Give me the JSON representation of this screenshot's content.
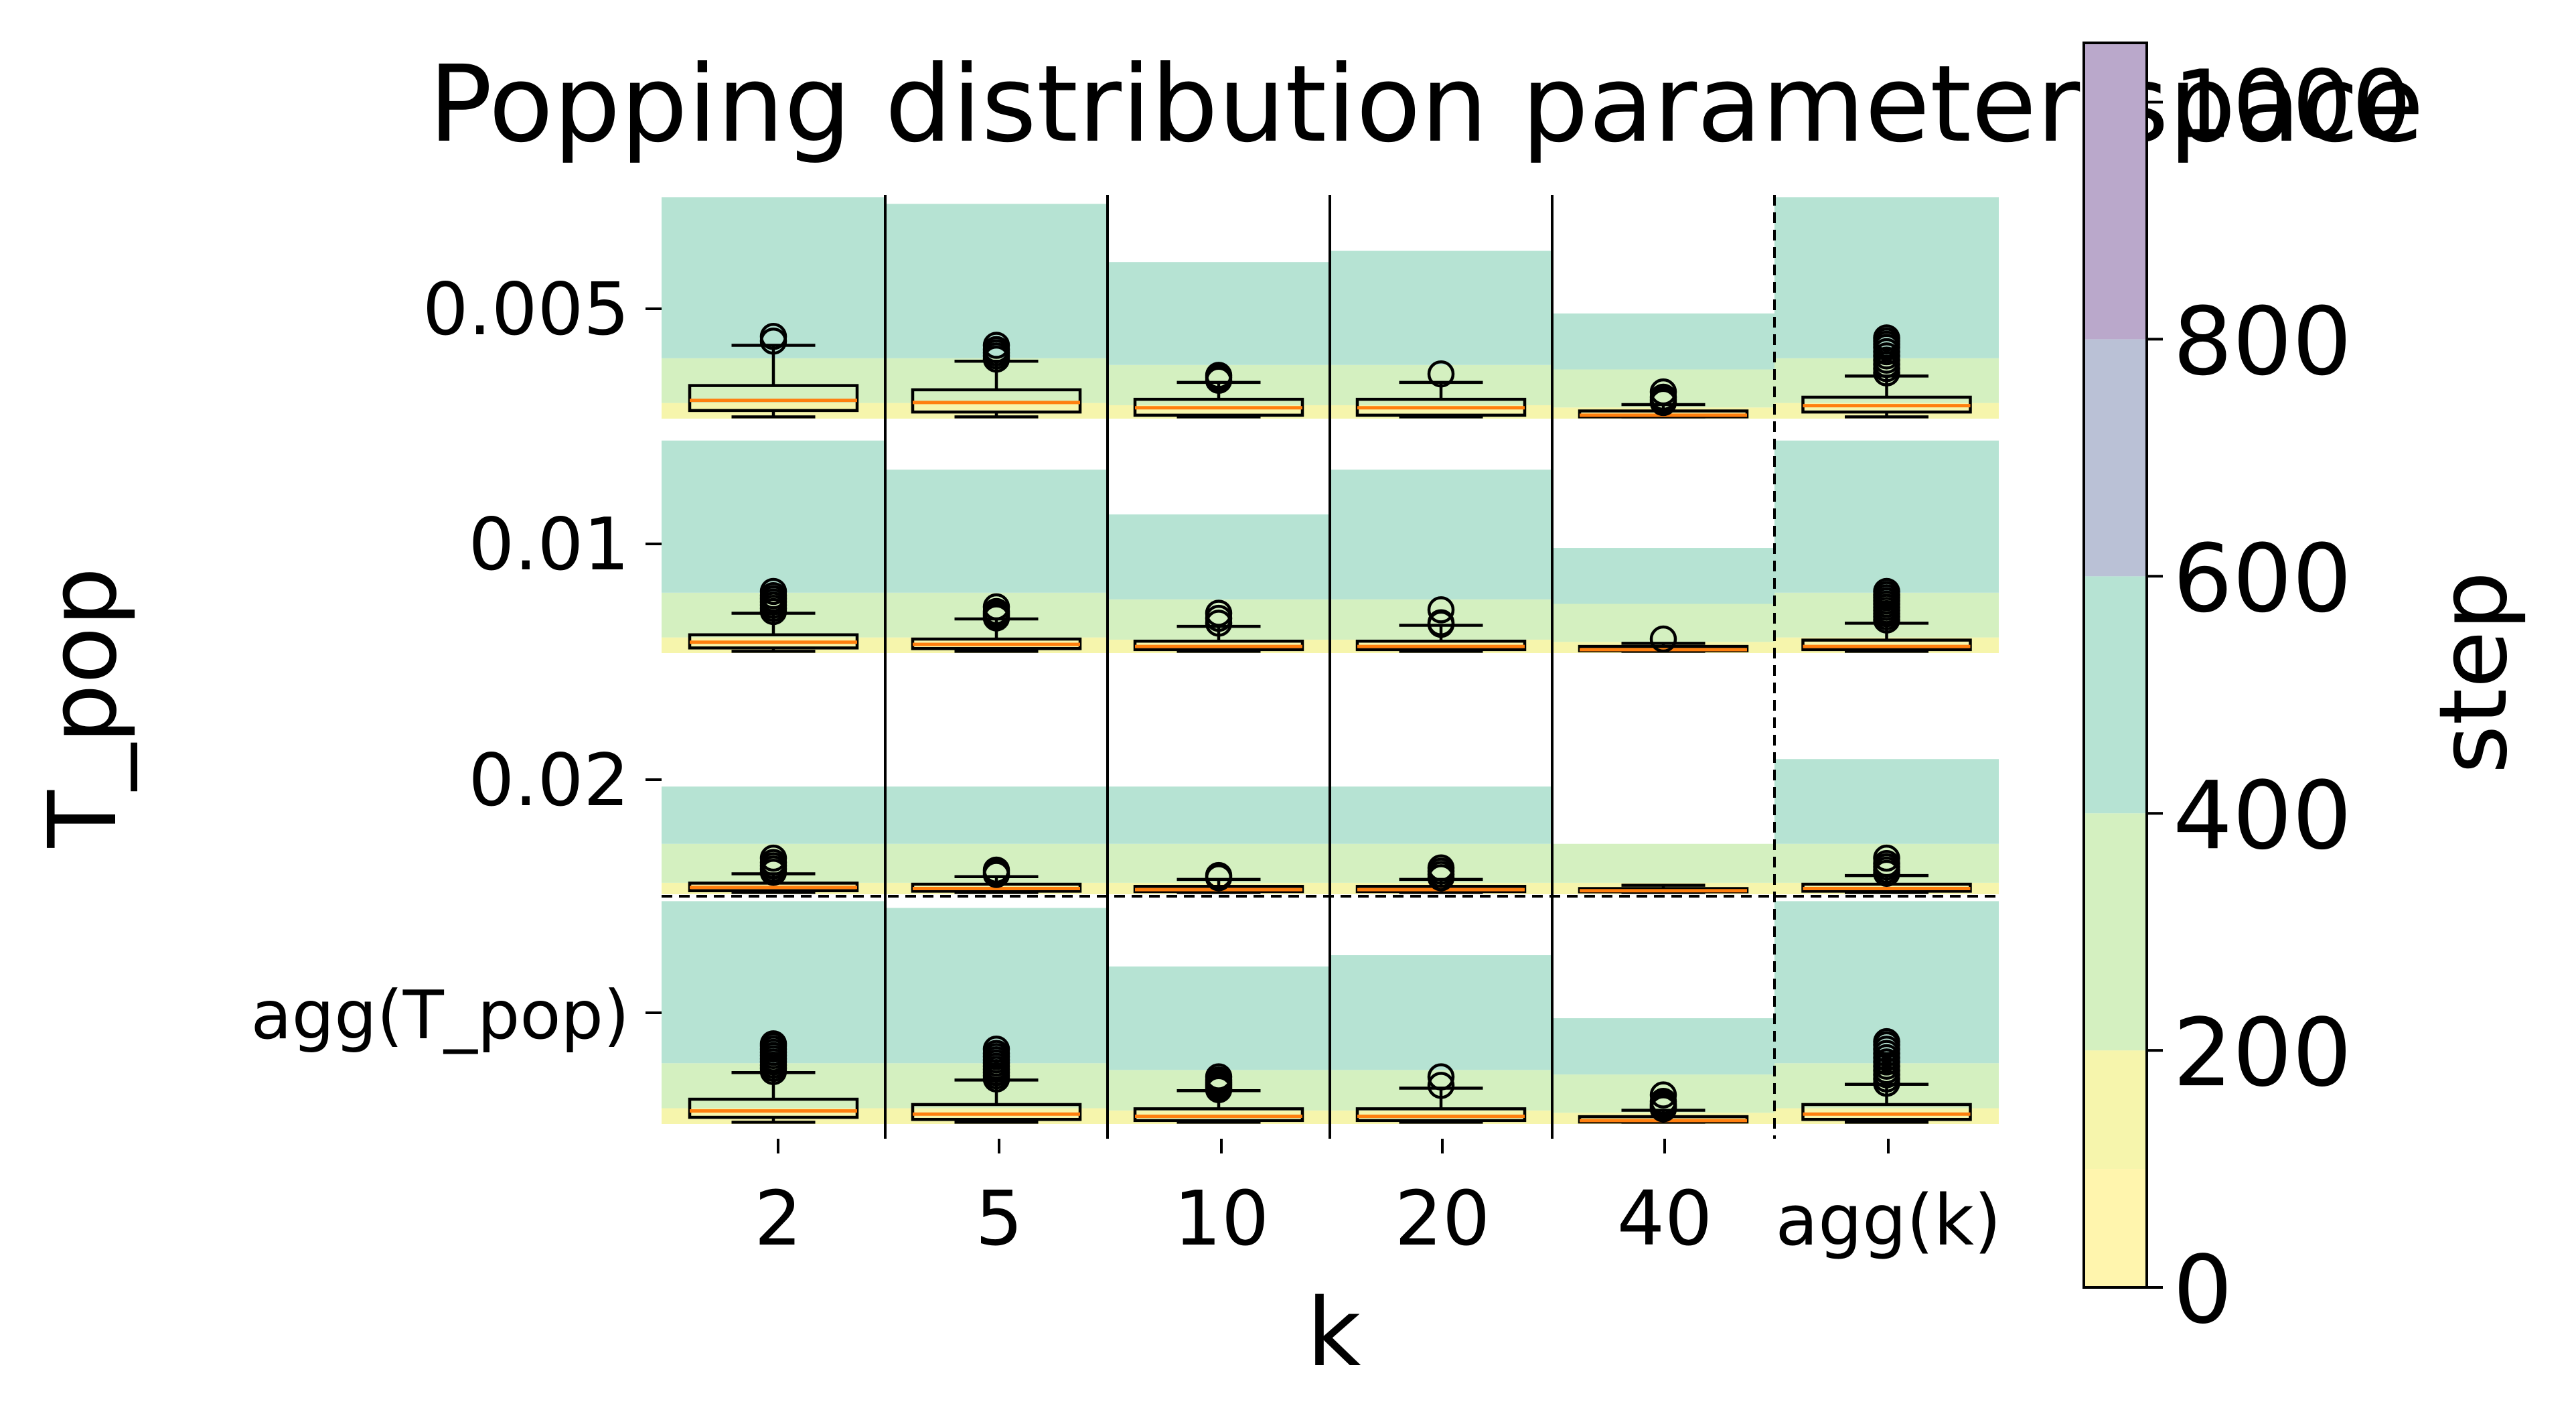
{
  "chart_data": {
    "type": "box",
    "title": "Popping distribution parameter space",
    "xlabel": "k",
    "ylabel": "T_pop",
    "x_categories": [
      "2",
      "5",
      "10",
      "20",
      "40",
      "agg(k)"
    ],
    "y_categories": [
      "0.005",
      "0.01",
      "0.02",
      "agg(T_pop)"
    ],
    "colorbar": {
      "label": "step",
      "range": [
        0,
        1050
      ],
      "ticks": [
        "0",
        "200",
        "400",
        "600",
        "800",
        "1000"
      ],
      "tick_values": [
        0,
        200,
        400,
        600,
        800,
        1000
      ],
      "colors": [
        "#fff5ad",
        "#f6f5ac",
        "#d4f0c0",
        "#b6e3d3",
        "#bac1d6",
        "#baa8cb"
      ]
    },
    "cell_value_range": [
      0,
      1000
    ],
    "cells": [
      {
        "row": 0,
        "col": 0,
        "bands": [
          0.07,
          0.27,
          0.99
        ],
        "box": {
          "whislo": 2,
          "q1": 32,
          "med": 80,
          "q3": 150,
          "whishi": 340,
          "fliers": [
            360,
            382
          ]
        }
      },
      {
        "row": 0,
        "col": 1,
        "bands": [
          0.07,
          0.27,
          0.96
        ],
        "box": {
          "whislo": 2,
          "q1": 25,
          "med": 70,
          "q3": 130,
          "whishi": 265,
          "fliers": [
            275,
            290,
            305,
            320,
            340
          ]
        }
      },
      {
        "row": 0,
        "col": 2,
        "bands": [
          0.06,
          0.24,
          0.7
        ],
        "box": {
          "whislo": 2,
          "q1": 10,
          "med": 45,
          "q3": 85,
          "whishi": 165,
          "fliers": [
            175,
            188,
            198
          ]
        }
      },
      {
        "row": 0,
        "col": 3,
        "bands": [
          0.06,
          0.24,
          0.75
        ],
        "box": {
          "whislo": 2,
          "q1": 10,
          "med": 45,
          "q3": 85,
          "whishi": 165,
          "fliers": [
            205
          ]
        }
      },
      {
        "row": 0,
        "col": 4,
        "bands": [
          0.05,
          0.22,
          0.47
        ],
        "box": {
          "whislo": 2,
          "q1": 2,
          "med": 10,
          "q3": 30,
          "whishi": 60,
          "fliers": [
            70,
            82,
            95,
            120
          ]
        }
      },
      {
        "row": 0,
        "col": 5,
        "bands": [
          0.07,
          0.27,
          0.99
        ],
        "box": {
          "whislo": 2,
          "q1": 25,
          "med": 55,
          "q3": 95,
          "whishi": 195,
          "fliers": [
            210,
            230,
            250,
            270,
            290,
            310,
            330,
            345,
            360,
            375
          ]
        }
      },
      {
        "row": 1,
        "col": 0,
        "bands": [
          0.07,
          0.27,
          0.95
        ],
        "box": {
          "whislo": 2,
          "q1": 18,
          "med": 45,
          "q3": 80,
          "whishi": 182,
          "fliers": [
            190,
            205,
            220,
            235,
            250,
            265,
            285
          ]
        }
      },
      {
        "row": 1,
        "col": 1,
        "bands": [
          0.07,
          0.27,
          0.82
        ],
        "box": {
          "whislo": 2,
          "q1": 15,
          "med": 35,
          "q3": 60,
          "whishi": 155,
          "fliers": [
            160,
            170,
            180,
            190,
            212
          ]
        }
      },
      {
        "row": 1,
        "col": 2,
        "bands": [
          0.06,
          0.24,
          0.62
        ],
        "box": {
          "whislo": 2,
          "q1": 10,
          "med": 25,
          "q3": 50,
          "whishi": 120,
          "fliers": [
            135,
            158,
            182
          ]
        }
      },
      {
        "row": 1,
        "col": 3,
        "bands": [
          0.06,
          0.24,
          0.82
        ],
        "box": {
          "whislo": 2,
          "q1": 10,
          "med": 25,
          "q3": 50,
          "whishi": 125,
          "fliers": [
            130,
            137,
            198
          ]
        }
      },
      {
        "row": 1,
        "col": 4,
        "bands": [
          0.05,
          0.22,
          0.47
        ],
        "box": {
          "whislo": 2,
          "q1": 5,
          "med": 10,
          "q3": 25,
          "whishi": 40,
          "fliers": [
            60
          ]
        }
      },
      {
        "row": 1,
        "col": 5,
        "bands": [
          0.07,
          0.27,
          0.95
        ],
        "box": {
          "whislo": 2,
          "q1": 10,
          "med": 25,
          "q3": 55,
          "whishi": 135,
          "fliers": [
            150,
            165,
            180,
            195,
            210,
            225,
            240,
            255,
            270,
            285
          ]
        }
      },
      {
        "row": 2,
        "col": 0,
        "bands": [
          0.05,
          0.22,
          0.47
        ],
        "box": {
          "whislo": 2,
          "q1": 10,
          "med": 25,
          "q3": 45,
          "whishi": 88,
          "fliers": [
            95,
            110,
            125,
            140,
            160
          ]
        }
      },
      {
        "row": 2,
        "col": 1,
        "bands": [
          0.05,
          0.22,
          0.47
        ],
        "box": {
          "whislo": 2,
          "q1": 8,
          "med": 20,
          "q3": 40,
          "whishi": 75,
          "fliers": [
            85,
            95,
            105
          ]
        }
      },
      {
        "row": 2,
        "col": 2,
        "bands": [
          0.05,
          0.22,
          0.47
        ],
        "box": {
          "whislo": 2,
          "q1": 6,
          "med": 15,
          "q3": 30,
          "whishi": 62,
          "fliers": [
            70,
            80
          ]
        }
      },
      {
        "row": 2,
        "col": 3,
        "bands": [
          0.05,
          0.22,
          0.47
        ],
        "box": {
          "whislo": 2,
          "q1": 6,
          "med": 15,
          "q3": 30,
          "whishi": 62,
          "fliers": [
            70,
            85,
            100,
            115
          ]
        }
      },
      {
        "row": 2,
        "col": 4,
        "bands": [
          0.05,
          0.22,
          0.22
        ],
        "box": {
          "whislo": 2,
          "q1": 5,
          "med": 10,
          "q3": 20,
          "whishi": 35,
          "fliers": []
        }
      },
      {
        "row": 2,
        "col": 5,
        "bands": [
          0.05,
          0.22,
          0.59
        ],
        "box": {
          "whislo": 2,
          "q1": 8,
          "med": 20,
          "q3": 40,
          "whishi": 80,
          "fliers": [
            90,
            105,
            120,
            135,
            160
          ]
        }
      },
      {
        "row": 3,
        "col": 0,
        "bands": [
          0.07,
          0.27,
          0.99
        ],
        "box": {
          "whislo": 2,
          "q1": 25,
          "med": 55,
          "q3": 110,
          "whishi": 235,
          "fliers": [
            240,
            255,
            270,
            285,
            300,
            315,
            330,
            345,
            360,
            370
          ]
        }
      },
      {
        "row": 3,
        "col": 1,
        "bands": [
          0.07,
          0.27,
          0.96
        ],
        "box": {
          "whislo": 2,
          "q1": 15,
          "med": 40,
          "q3": 85,
          "whishi": 200,
          "fliers": [
            205,
            220,
            235,
            250,
            265,
            280,
            295,
            310,
            325,
            345
          ]
        }
      },
      {
        "row": 3,
        "col": 2,
        "bands": [
          0.06,
          0.24,
          0.7
        ],
        "box": {
          "whislo": 2,
          "q1": 10,
          "med": 30,
          "q3": 65,
          "whishi": 150,
          "fliers": [
            155,
            163,
            172,
            181,
            190,
            200,
            215
          ]
        }
      },
      {
        "row": 3,
        "col": 3,
        "bands": [
          0.06,
          0.24,
          0.75
        ],
        "box": {
          "whislo": 2,
          "q1": 10,
          "med": 30,
          "q3": 65,
          "whishi": 162,
          "fliers": [
            175,
            215
          ]
        }
      },
      {
        "row": 3,
        "col": 4,
        "bands": [
          0.05,
          0.22,
          0.47
        ],
        "box": {
          "whislo": 2,
          "q1": 3,
          "med": 10,
          "q3": 28,
          "whishi": 58,
          "fliers": [
            65,
            72,
            80,
            88,
            100,
            130
          ]
        }
      },
      {
        "row": 3,
        "col": 5,
        "bands": [
          0.07,
          0.27,
          0.99
        ],
        "box": {
          "whislo": 2,
          "q1": 15,
          "med": 40,
          "q3": 85,
          "whishi": 180,
          "fliers": [
            185,
            205,
            225,
            245,
            265,
            285,
            305,
            325,
            345,
            365,
            380
          ]
        }
      }
    ]
  }
}
